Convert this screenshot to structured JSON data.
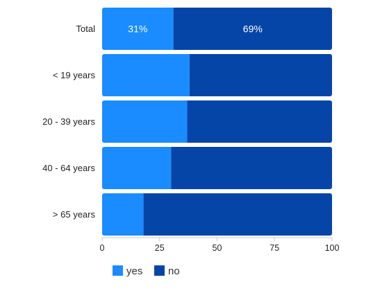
{
  "chart_data": {
    "type": "bar",
    "orientation": "horizontal",
    "stacked": true,
    "categories": [
      "Total",
      "< 19 years",
      "20 - 39 years",
      "40 - 64 years",
      "> 65 years"
    ],
    "series": [
      {
        "name": "yes",
        "color": "#1a8cff",
        "values": [
          31,
          38,
          37,
          30,
          18
        ]
      },
      {
        "name": "no",
        "color": "#0645a8",
        "values": [
          69,
          62,
          63,
          70,
          82
        ]
      }
    ],
    "data_labels": [
      {
        "category_index": 0,
        "series_index": 0,
        "text": "31%"
      },
      {
        "category_index": 0,
        "series_index": 1,
        "text": "69%"
      }
    ],
    "xlim": [
      0,
      100
    ],
    "xticks": [
      0,
      25,
      50,
      75,
      100
    ],
    "grid": false,
    "legend_position": "bottom-left"
  }
}
